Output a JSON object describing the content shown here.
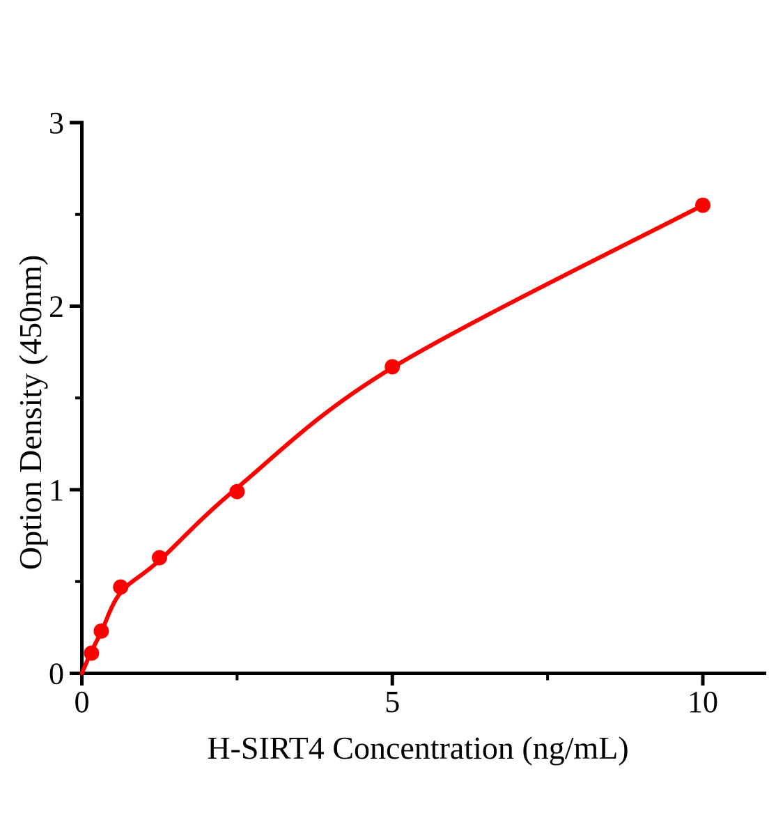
{
  "chart_data": {
    "type": "scatter",
    "title": "",
    "xlabel": "H-SIRT4 Concentration（ng/mL）",
    "ylabel": "Option Density（450nm）",
    "xlim": [
      0,
      11
    ],
    "ylim": [
      0,
      3
    ],
    "grid": false,
    "legend": null,
    "background_color": "#ffffff",
    "axis_color": "#000000",
    "series_color": "#ff0000",
    "marker": "circle",
    "x_ticks": {
      "major": [
        0,
        5,
        10
      ],
      "labels": [
        "0",
        "5",
        "10"
      ],
      "minor": [
        2.5,
        7.5
      ]
    },
    "y_ticks": {
      "major": [
        0,
        1,
        2,
        3
      ],
      "labels": [
        "0",
        "1",
        "2",
        "3"
      ],
      "minor": [
        0.5,
        1.5,
        2.5
      ]
    },
    "points": {
      "x": [
        0.156,
        0.3125,
        0.625,
        1.25,
        2.5,
        5,
        10
      ],
      "y": [
        0.11,
        0.23,
        0.47,
        0.63,
        0.99,
        1.67,
        2.55
      ]
    },
    "fit_curve": {
      "x": [
        0,
        0.156,
        0.3125,
        0.625,
        1.25,
        2.5,
        5,
        10
      ],
      "y": [
        0,
        0.12,
        0.225,
        0.44,
        0.615,
        1.01,
        1.665,
        2.55
      ]
    }
  }
}
